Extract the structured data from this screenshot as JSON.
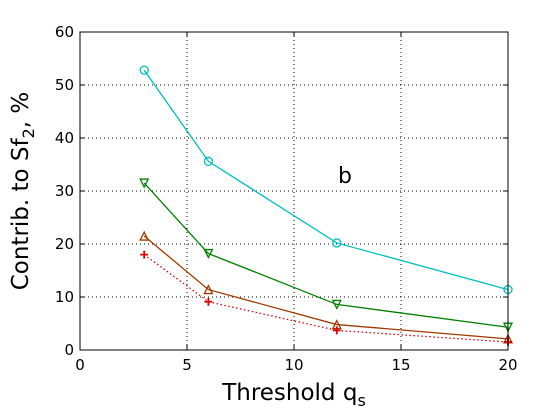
{
  "chart_data": {
    "type": "line",
    "title": "",
    "xlabel": "Threshold q",
    "xlabel_sub": "s",
    "ylabel": "Contrib. to Sf",
    "ylabel_sub": "2",
    "ylabel_suffix": ", %",
    "xlim": [
      0,
      20
    ],
    "ylim": [
      0,
      60
    ],
    "xticks": [
      0,
      5,
      10,
      15,
      20
    ],
    "yticks": [
      0,
      10,
      20,
      30,
      40,
      50,
      60
    ],
    "grid": true,
    "legend": "none",
    "annotation": "b",
    "series": [
      {
        "color": "#00bfbf",
        "marker": "circle",
        "line": "solid",
        "x": [
          3,
          6,
          12,
          20
        ],
        "y": [
          52.8,
          35.6,
          20.2,
          11.4
        ]
      },
      {
        "color": "#008000",
        "marker": "triangle-down",
        "line": "solid",
        "x": [
          3,
          6,
          12,
          20
        ],
        "y": [
          31.5,
          18.2,
          8.6,
          4.3
        ]
      },
      {
        "color": "#a03a00",
        "marker": "triangle-up",
        "line": "solid",
        "x": [
          3,
          6,
          12,
          20
        ],
        "y": [
          21.5,
          11.4,
          4.8,
          2.1
        ]
      },
      {
        "color": "#e00000",
        "marker": "plus",
        "line": "dotted",
        "x": [
          3,
          6,
          12,
          20
        ],
        "y": [
          18.0,
          9.1,
          3.7,
          1.5
        ]
      }
    ]
  }
}
